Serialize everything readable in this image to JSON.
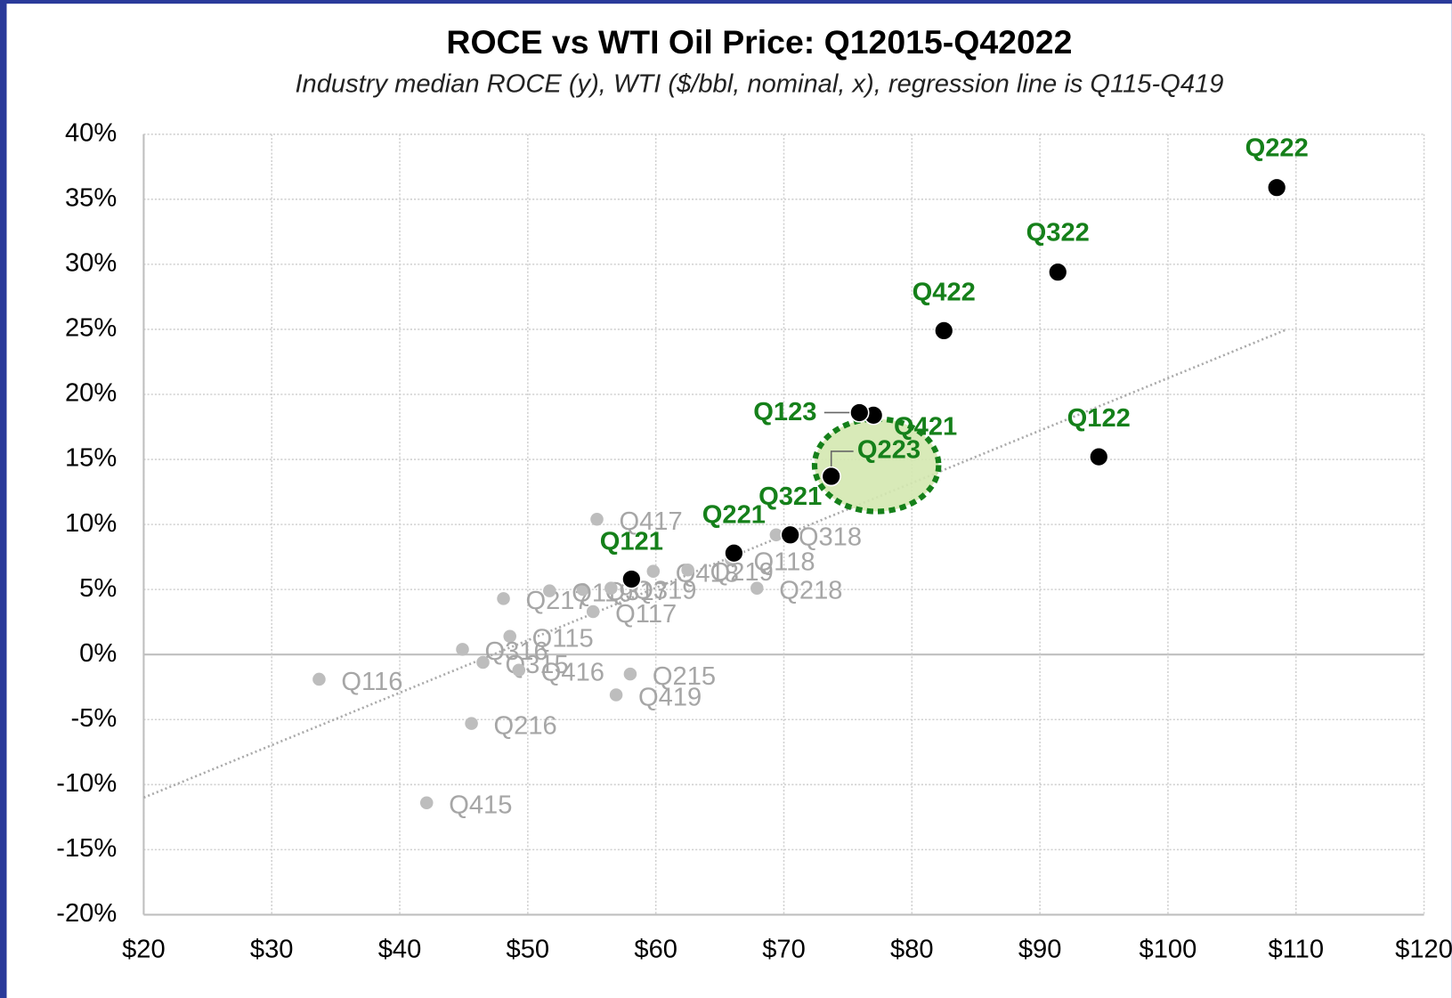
{
  "chart_data": {
    "type": "scatter",
    "title": "ROCE vs WTI Oil Price: Q12015-Q42022",
    "subtitle": "Industry median ROCE (y), WTI ($/bbl, nominal, x), regression line is Q115-Q419",
    "xlim": [
      20,
      120
    ],
    "ylim": [
      -20,
      40
    ],
    "xticks": [
      {
        "value": 20,
        "label": "$20"
      },
      {
        "value": 30,
        "label": "$30"
      },
      {
        "value": 40,
        "label": "$40"
      },
      {
        "value": 50,
        "label": "$50"
      },
      {
        "value": 60,
        "label": "$60"
      },
      {
        "value": 70,
        "label": "$70"
      },
      {
        "value": 80,
        "label": "$80"
      },
      {
        "value": 90,
        "label": "$90"
      },
      {
        "value": 100,
        "label": "$100"
      },
      {
        "value": 110,
        "label": "$110"
      },
      {
        "value": 120,
        "label": "$120"
      }
    ],
    "yticks": [
      {
        "value": -20,
        "label": "-20%"
      },
      {
        "value": -15,
        "label": "-15%"
      },
      {
        "value": -10,
        "label": "-10%"
      },
      {
        "value": -5,
        "label": "-5%"
      },
      {
        "value": 0,
        "label": "0%"
      },
      {
        "value": 5,
        "label": "5%"
      },
      {
        "value": 10,
        "label": "10%"
      },
      {
        "value": 15,
        "label": "15%"
      },
      {
        "value": 20,
        "label": "20%"
      },
      {
        "value": 25,
        "label": "25%"
      },
      {
        "value": 30,
        "label": "30%"
      },
      {
        "value": 35,
        "label": "35%"
      },
      {
        "value": 40,
        "label": "40%"
      }
    ],
    "grid": true,
    "series": [
      {
        "color": "#bdbdbd",
        "label_color": "#a6a6a6",
        "labels": [
          "Q115",
          "Q215",
          "Q315",
          "Q415",
          "Q116",
          "Q216",
          "Q316",
          "Q416",
          "Q117",
          "Q217",
          "Q317",
          "Q417",
          "Q118",
          "Q218",
          "Q318",
          "Q418",
          "Q119",
          "Q219",
          "Q319",
          "Q419"
        ],
        "x": [
          48.6,
          58.0,
          46.5,
          42.1,
          33.7,
          45.6,
          44.9,
          49.3,
          55.1,
          48.1,
          54.3,
          55.4,
          65.9,
          67.9,
          69.4,
          59.8,
          51.7,
          62.5,
          56.5,
          56.9
        ],
        "values": [
          1.4,
          -1.5,
          -0.6,
          -11.4,
          -1.9,
          -5.3,
          0.4,
          -1.2,
          3.3,
          4.3,
          5.0,
          10.4,
          7.3,
          5.1,
          9.2,
          6.4,
          4.9,
          6.5,
          5.1,
          -3.1
        ]
      },
      {
        "color": "#000000",
        "label_color": "#15801a",
        "labels": [
          "Q121",
          "Q221",
          "Q321",
          "Q421",
          "Q122",
          "Q222",
          "Q322",
          "Q422",
          "Q123",
          "Q223"
        ],
        "x": [
          58.1,
          66.1,
          70.5,
          77.0,
          94.6,
          108.5,
          91.4,
          82.5,
          75.9,
          73.7
        ],
        "values": [
          5.8,
          7.8,
          9.2,
          18.4,
          15.2,
          35.9,
          29.4,
          24.9,
          18.6,
          13.7
        ]
      }
    ],
    "regression": {
      "x": [
        20,
        109.3
      ],
      "values": [
        -11.0,
        25.0
      ]
    }
  }
}
